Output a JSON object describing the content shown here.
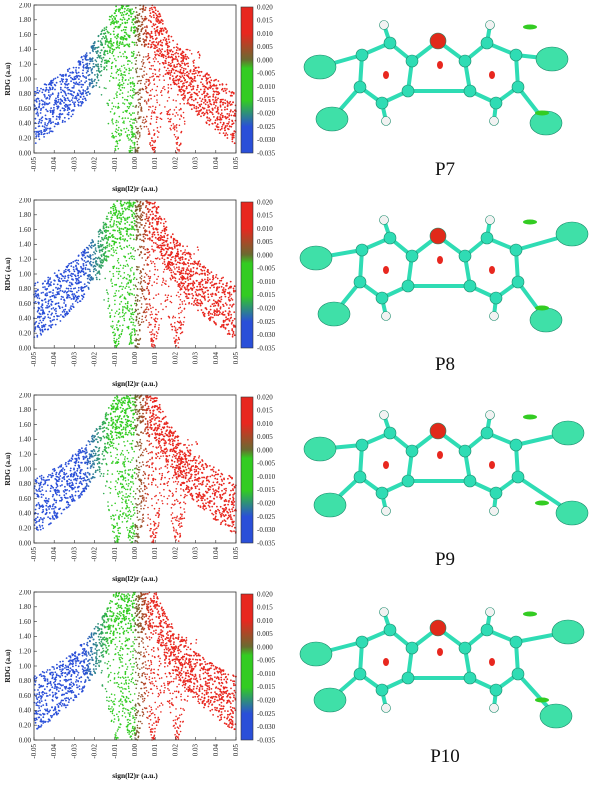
{
  "chart_data": [
    {
      "type": "scatter",
      "panel_label": "P7",
      "xlabel": "sign(l2)r (a.u.)",
      "ylabel": "RDG (a.u)",
      "xlim": [
        -0.05,
        0.05
      ],
      "ylim": [
        0.0,
        2.0
      ],
      "xticks": [
        "-0.05",
        "-0.04",
        "-0.03",
        "-0.02",
        "-0.01",
        "0.00",
        "0.01",
        "0.02",
        "0.03",
        "0.04",
        "0.05"
      ],
      "yticks": [
        "0.00",
        "0.20",
        "0.40",
        "0.60",
        "0.80",
        "1.00",
        "1.20",
        "1.40",
        "1.60",
        "1.80",
        "2.00"
      ],
      "colorbar": {
        "range": [
          -0.035,
          0.02
        ],
        "ticks": [
          "0.020",
          "0.015",
          "0.010",
          "0.005",
          "0.000",
          "-0.005",
          "-0.010",
          "-0.015",
          "-0.020",
          "-0.025",
          "-0.030",
          "-0.035"
        ]
      },
      "spikes": [
        -0.009,
        -0.002,
        0.001,
        0.009,
        0.021
      ]
    },
    {
      "type": "scatter",
      "panel_label": "P8",
      "xlabel": "sign(l2)r (a.u.)",
      "ylabel": "RDG (a.u)",
      "xlim": [
        -0.05,
        0.05
      ],
      "ylim": [
        0.0,
        2.0
      ],
      "xticks": [
        "-0.05",
        "-0.04",
        "-0.03",
        "-0.02",
        "-0.01",
        "0.00",
        "0.01",
        "0.02",
        "0.03",
        "0.04",
        "0.05"
      ],
      "yticks": [
        "0.00",
        "0.20",
        "0.40",
        "0.60",
        "0.80",
        "1.00",
        "1.20",
        "1.40",
        "1.60",
        "1.80",
        "2.00"
      ],
      "colorbar": {
        "range": [
          -0.035,
          0.02
        ],
        "ticks": [
          "0.020",
          "0.015",
          "0.010",
          "0.005",
          "0.000",
          "-0.005",
          "-0.010",
          "-0.015",
          "-0.020",
          "-0.025",
          "-0.030",
          "-0.035"
        ]
      },
      "spikes": [
        -0.009,
        -0.002,
        0.001,
        0.009,
        0.021
      ]
    },
    {
      "type": "scatter",
      "panel_label": "P9",
      "xlabel": "sign(l2)r (a.u.)",
      "ylabel": "RDG (a.u)",
      "xlim": [
        -0.05,
        0.05
      ],
      "ylim": [
        0.0,
        2.0
      ],
      "xticks": [
        "-0.05",
        "-0.04",
        "-0.03",
        "-0.02",
        "-0.01",
        "0.00",
        "0.01",
        "0.02",
        "0.03",
        "0.04",
        "0.05"
      ],
      "yticks": [
        "0.00",
        "0.20",
        "0.40",
        "0.60",
        "0.80",
        "1.00",
        "1.20",
        "1.40",
        "1.60",
        "1.80",
        "2.00"
      ],
      "colorbar": {
        "range": [
          -0.035,
          0.02
        ],
        "ticks": [
          "0.020",
          "0.015",
          "0.010",
          "0.005",
          "0.000",
          "-0.005",
          "-0.010",
          "-0.015",
          "-0.020",
          "-0.025",
          "-0.030",
          "-0.035"
        ]
      },
      "spikes": [
        -0.009,
        -0.002,
        0.001,
        0.009,
        0.021
      ]
    },
    {
      "type": "scatter",
      "panel_label": "P10",
      "xlabel": "sign(l2)r (a.u.)",
      "ylabel": "RDG (a.u)",
      "xlim": [
        -0.05,
        0.05
      ],
      "ylim": [
        0.0,
        2.0
      ],
      "xticks": [
        "-0.05",
        "-0.04",
        "-0.03",
        "-0.02",
        "-0.01",
        "0.00",
        "0.01",
        "0.02",
        "0.03",
        "0.04",
        "0.05"
      ],
      "yticks": [
        "0.00",
        "0.20",
        "0.40",
        "0.60",
        "0.80",
        "1.00",
        "1.20",
        "1.40",
        "1.60",
        "1.80",
        "2.00"
      ],
      "colorbar": {
        "range": [
          -0.035,
          0.02
        ],
        "ticks": [
          "0.020",
          "0.015",
          "0.010",
          "0.005",
          "0.000",
          "-0.005",
          "-0.010",
          "-0.015",
          "-0.020",
          "-0.025",
          "-0.030",
          "-0.035"
        ]
      },
      "spikes": [
        -0.009,
        -0.002,
        0.001,
        0.009,
        0.021
      ]
    }
  ],
  "colors": {
    "blue": "#2a4fd8",
    "green": "#33cc22",
    "red": "#e8271f",
    "atom_halogen": "#3fe0a8",
    "atom_carbon": "#2fdcb4",
    "atom_oxygen": "#e02a1a",
    "atom_hydrogen": "#f2f2f2"
  }
}
